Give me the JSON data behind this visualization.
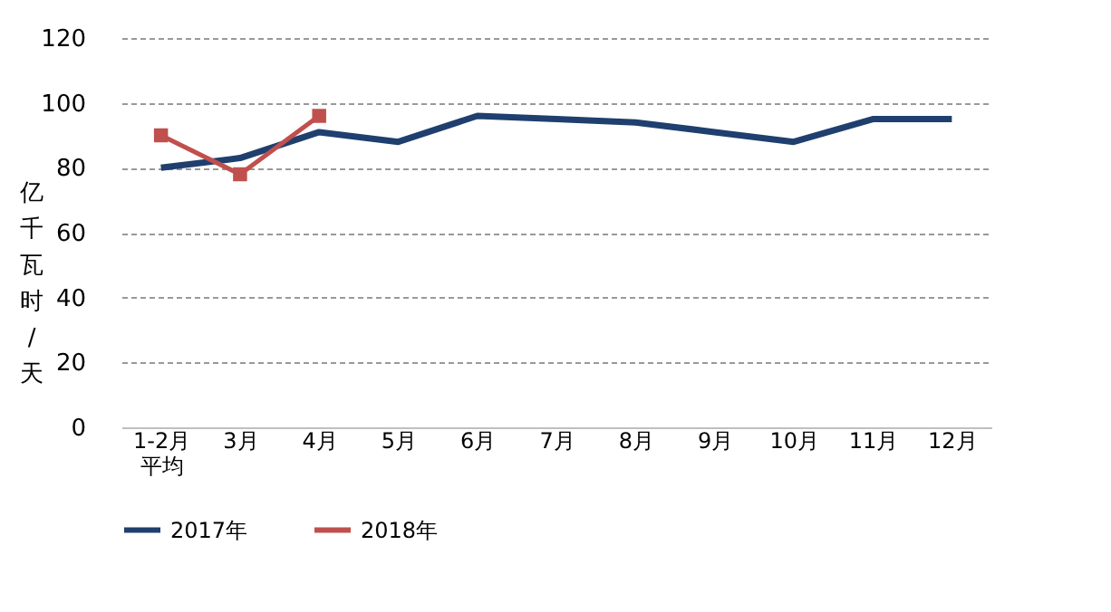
{
  "chart_data": {
    "type": "line",
    "categories": [
      "1-2月平均",
      "3月",
      "4月",
      "5月",
      "6月",
      "7月",
      "8月",
      "9月",
      "10月",
      "11月",
      "12月"
    ],
    "ylabel": "亿千瓦时/天",
    "ylim": [
      0,
      120
    ],
    "yticks": [
      0,
      20,
      40,
      60,
      80,
      100,
      120
    ],
    "grid": "y",
    "legend": "bottom",
    "series": [
      {
        "name": "2017年",
        "color": "#1f3f6e",
        "marker": "none",
        "values": [
          80,
          83,
          91,
          88,
          96,
          95,
          94,
          91,
          88,
          95,
          95
        ]
      },
      {
        "name": "2018年",
        "color": "#c0504d",
        "marker": "square",
        "values": [
          90,
          78,
          96,
          null,
          null,
          null,
          null,
          null,
          null,
          null,
          null
        ]
      }
    ]
  }
}
